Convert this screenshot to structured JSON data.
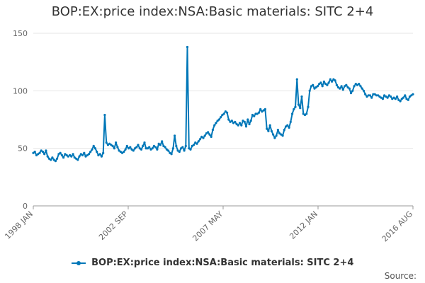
{
  "chart_data": {
    "type": "line",
    "title": "BOP:EX:price index:NSA:Basic materials: SITC 2+4",
    "xlabel": "",
    "ylabel": "",
    "x_ticks": [
      "1998 JAN",
      "2002 SEP",
      "2007 MAY",
      "2012 JAN",
      "2016 AUG"
    ],
    "ylim": [
      0,
      150
    ],
    "y_ticks": [
      0,
      50,
      100,
      150
    ],
    "grid": true,
    "legend_position": "bottom",
    "series": [
      {
        "name": "BOP:EX:price index:NSA:Basic materials: SITC 2+4",
        "color": "#0077b8",
        "start": "1998-01",
        "values": [
          46,
          47,
          44,
          45,
          46,
          48,
          47,
          45,
          48,
          43,
          41,
          40,
          42,
          40,
          39,
          41,
          45,
          46,
          44,
          42,
          45,
          44,
          43,
          44,
          43,
          45,
          42,
          41,
          40,
          43,
          45,
          44,
          46,
          43,
          44,
          45,
          47,
          49,
          52,
          50,
          47,
          44,
          45,
          43,
          46,
          79,
          55,
          53,
          54,
          53,
          52,
          50,
          55,
          51,
          48,
          47,
          46,
          47,
          49,
          52,
          50,
          51,
          49,
          48,
          50,
          51,
          53,
          50,
          49,
          52,
          55,
          50,
          50,
          51,
          49,
          50,
          52,
          51,
          49,
          54,
          53,
          56,
          52,
          51,
          49,
          48,
          46,
          45,
          50,
          61,
          52,
          48,
          47,
          50,
          51,
          48,
          52,
          138,
          50,
          49,
          52,
          53,
          55,
          54,
          56,
          58,
          60,
          59,
          61,
          63,
          64,
          62,
          60,
          66,
          70,
          72,
          74,
          75,
          77,
          79,
          80,
          82,
          81,
          75,
          73,
          74,
          72,
          73,
          71,
          70,
          72,
          70,
          74,
          73,
          69,
          75,
          71,
          74,
          79,
          78,
          80,
          80,
          81,
          84,
          82,
          83,
          84,
          67,
          65,
          70,
          65,
          62,
          59,
          61,
          66,
          63,
          62,
          61,
          66,
          69,
          70,
          68,
          73,
          80,
          84,
          86,
          110,
          88,
          85,
          95,
          80,
          79,
          80,
          86,
          100,
          104,
          105,
          102,
          103,
          104,
          106,
          107,
          104,
          108,
          106,
          105,
          107,
          110,
          108,
          110,
          109,
          105,
          103,
          102,
          104,
          101,
          104,
          105,
          103,
          102,
          98,
          100,
          104,
          106,
          105,
          106,
          104,
          102,
          100,
          97,
          95,
          96,
          96,
          94,
          97,
          97,
          96,
          96,
          95,
          94,
          93,
          96,
          95,
          94,
          96,
          95,
          93,
          94,
          93,
          95,
          92,
          91,
          93,
          94,
          96,
          93,
          92,
          95,
          96,
          97
        ]
      }
    ]
  },
  "legend": {
    "label": "BOP:EX:price index:NSA:Basic materials: SITC 2+4"
  },
  "footer": {
    "source_label": "Source:"
  }
}
